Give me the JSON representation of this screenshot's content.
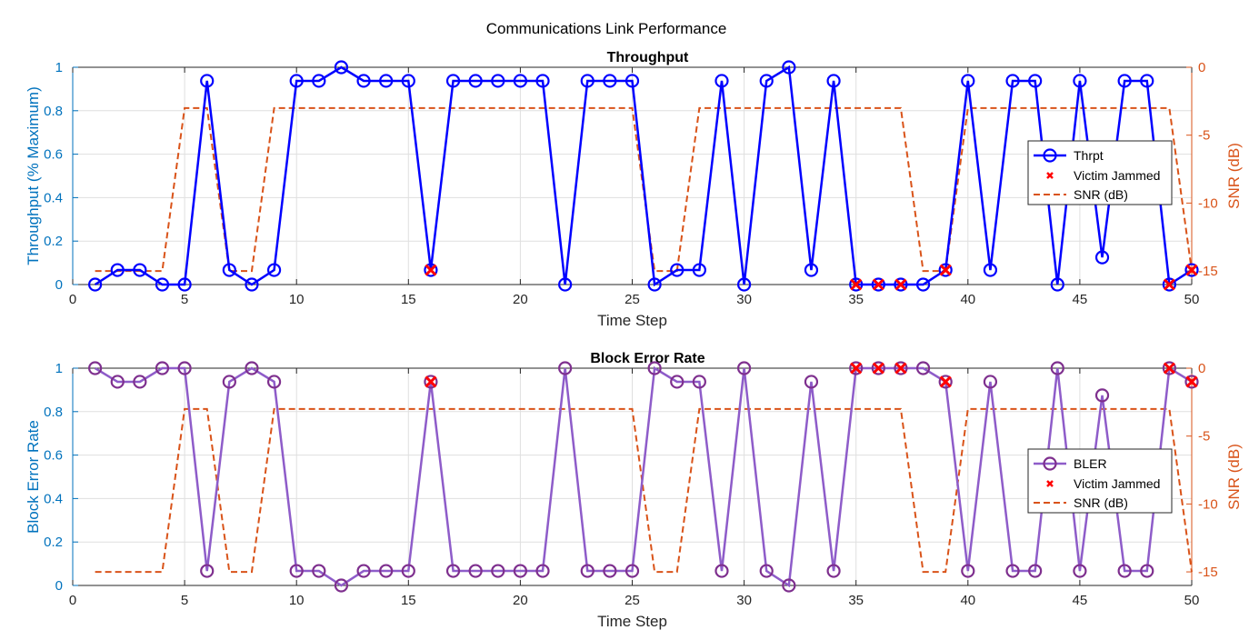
{
  "figure_title": "Communications Link Performance",
  "x_ticks": [
    0,
    5,
    10,
    15,
    20,
    25,
    30,
    35,
    40,
    45,
    50
  ],
  "y_left_ticks": [
    0,
    0.2,
    0.4,
    0.6,
    0.8,
    1
  ],
  "y_left_tick_labels": [
    "0",
    "0.2",
    "0.4",
    "0.6",
    "0.8",
    "1"
  ],
  "y_right_ticks": [
    0,
    -5,
    -10,
    -15
  ],
  "colors": {
    "left_axis": "#0072BD",
    "right_axis": "#D95319",
    "throughput": "#0000FF",
    "bler": "#7E2F8E",
    "bler_line": "#8E5CC9",
    "snr": "#D95319",
    "jammed": "#FF0000",
    "grid": "#DFDFDF"
  },
  "chart_data": [
    {
      "type": "line",
      "title": "Throughput",
      "xlabel": "Time Step",
      "ylabel": "Throughput (% Maximum)",
      "ylabel_right": "SNR (dB)",
      "xlim": [
        0,
        50
      ],
      "ylim": [
        0,
        1
      ],
      "ylim_right": [
        -16,
        0
      ],
      "grid": true,
      "legend_position": "right",
      "legend": [
        "Thrpt",
        "Victim Jammed",
        "SNR (dB)"
      ],
      "x": [
        1,
        2,
        3,
        4,
        5,
        6,
        7,
        8,
        9,
        10,
        11,
        12,
        13,
        14,
        15,
        16,
        17,
        18,
        19,
        20,
        21,
        22,
        23,
        24,
        25,
        26,
        27,
        28,
        29,
        30,
        31,
        32,
        33,
        34,
        35,
        36,
        37,
        38,
        39,
        40,
        41,
        42,
        43,
        44,
        45,
        46,
        47,
        48,
        49,
        50
      ],
      "series": [
        {
          "name": "Thrpt",
          "axis": "left",
          "values": [
            0,
            0.0667,
            0.0667,
            0,
            0,
            0.9375,
            0.0667,
            0,
            0.0667,
            0.9375,
            0.9375,
            1,
            0.9375,
            0.9375,
            0.9375,
            0.0667,
            0.9375,
            0.9375,
            0.9375,
            0.9375,
            0.9375,
            0,
            0.9375,
            0.9375,
            0.9375,
            0,
            0.0667,
            0.0667,
            0.9375,
            0,
            0.9375,
            1,
            0.0667,
            0.9375,
            0,
            0,
            0,
            0,
            0.0667,
            0.9375,
            0.0667,
            0.9375,
            0.9375,
            0,
            0.9375,
            0.125,
            0.9375,
            0.9375,
            0,
            0.0667
          ]
        },
        {
          "name": "Victim Jammed",
          "axis": "left",
          "x": [
            16,
            35,
            36,
            37,
            39,
            49,
            50
          ],
          "values": [
            0.0667,
            0,
            0,
            0,
            0.0667,
            0,
            0.0667
          ]
        },
        {
          "name": "SNR (dB)",
          "axis": "right",
          "values": [
            -15,
            -15,
            -15,
            -15,
            -3,
            -3,
            -15,
            -15,
            -3,
            -3,
            -3,
            -3,
            -3,
            -3,
            -3,
            -3,
            -3,
            -3,
            -3,
            -3,
            -3,
            -3,
            -3,
            -3,
            -3,
            -15,
            -15,
            -3,
            -3,
            -3,
            -3,
            -3,
            -3,
            -3,
            -3,
            -3,
            -3,
            -15,
            -15,
            -3,
            -3,
            -3,
            -3,
            -3,
            -3,
            -3,
            -3,
            -3,
            -3,
            -15
          ]
        }
      ]
    },
    {
      "type": "line",
      "title": "Block Error Rate",
      "xlabel": "Time Step",
      "ylabel": "Block Error Rate",
      "ylabel_right": "SNR (dB)",
      "xlim": [
        0,
        50
      ],
      "ylim": [
        0,
        1
      ],
      "ylim_right": [
        -16,
        0
      ],
      "grid": true,
      "legend_position": "right",
      "legend": [
        "BLER",
        "Victim Jammed",
        "SNR (dB)"
      ],
      "x": [
        1,
        2,
        3,
        4,
        5,
        6,
        7,
        8,
        9,
        10,
        11,
        12,
        13,
        14,
        15,
        16,
        17,
        18,
        19,
        20,
        21,
        22,
        23,
        24,
        25,
        26,
        27,
        28,
        29,
        30,
        31,
        32,
        33,
        34,
        35,
        36,
        37,
        38,
        39,
        40,
        41,
        42,
        43,
        44,
        45,
        46,
        47,
        48,
        49,
        50
      ],
      "series": [
        {
          "name": "BLER",
          "axis": "left",
          "values": [
            1,
            0.9375,
            0.9375,
            1,
            1,
            0.0667,
            0.9375,
            1,
            0.9375,
            0.0667,
            0.0667,
            0,
            0.0667,
            0.0667,
            0.0667,
            0.9375,
            0.0667,
            0.0667,
            0.0667,
            0.0667,
            0.0667,
            1,
            0.0667,
            0.0667,
            0.0667,
            1,
            0.9375,
            0.9375,
            0.0667,
            1,
            0.0667,
            0,
            0.9375,
            0.0667,
            1,
            1,
            1,
            1,
            0.9375,
            0.0667,
            0.9375,
            0.0667,
            0.0667,
            1,
            0.0667,
            0.875,
            0.0667,
            0.0667,
            1,
            0.9375
          ]
        },
        {
          "name": "Victim Jammed",
          "axis": "left",
          "x": [
            16,
            35,
            36,
            37,
            39,
            49,
            50
          ],
          "values": [
            0.9375,
            1,
            1,
            1,
            0.9375,
            1,
            0.9375
          ]
        },
        {
          "name": "SNR (dB)",
          "axis": "right",
          "values": [
            -15,
            -15,
            -15,
            -15,
            -3,
            -3,
            -15,
            -15,
            -3,
            -3,
            -3,
            -3,
            -3,
            -3,
            -3,
            -3,
            -3,
            -3,
            -3,
            -3,
            -3,
            -3,
            -3,
            -3,
            -3,
            -15,
            -15,
            -3,
            -3,
            -3,
            -3,
            -3,
            -3,
            -3,
            -3,
            -3,
            -3,
            -15,
            -15,
            -3,
            -3,
            -3,
            -3,
            -3,
            -3,
            -3,
            -3,
            -3,
            -3,
            -15
          ]
        }
      ]
    }
  ]
}
